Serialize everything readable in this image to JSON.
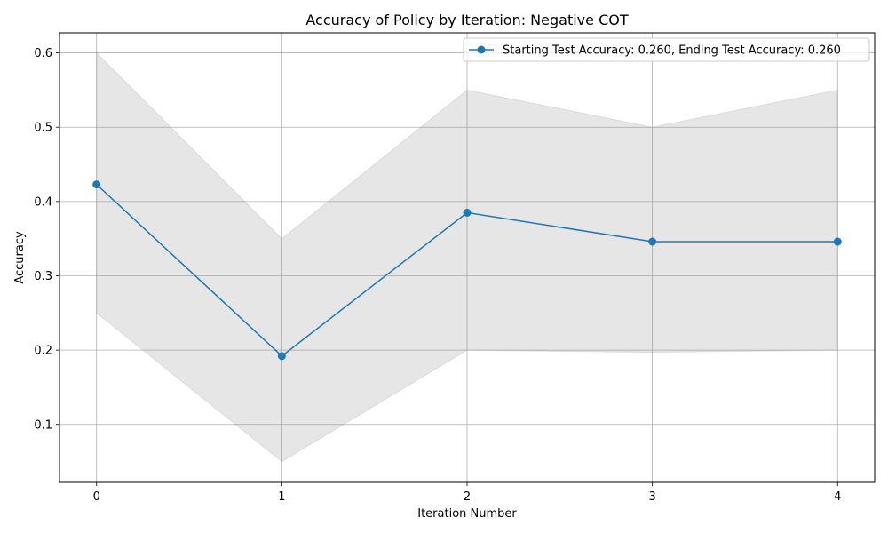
{
  "chart_data": {
    "type": "line",
    "title": "Accuracy of Policy by Iteration: Negative COT",
    "xlabel": "Iteration Number",
    "ylabel": "Accuracy",
    "x": [
      0,
      1,
      2,
      3,
      4
    ],
    "x_ticks": [
      "0",
      "1",
      "2",
      "3",
      "4"
    ],
    "y_ticks": [
      "0.1",
      "0.2",
      "0.3",
      "0.4",
      "0.5",
      "0.6"
    ],
    "y_tick_values": [
      0.1,
      0.2,
      0.3,
      0.4,
      0.5,
      0.6
    ],
    "xlim": [
      -0.2,
      4.2
    ],
    "ylim": [
      0.022,
      0.627
    ],
    "grid": true,
    "legend_position": "top-right",
    "series": [
      {
        "name": "Starting Test Accuracy: 0.260, Ending Test Accuracy: 0.260",
        "values": [
          0.423,
          0.192,
          0.385,
          0.346,
          0.346
        ],
        "color": "#1f77b4",
        "marker": "circle"
      }
    ],
    "band": {
      "lower": [
        0.25,
        0.05,
        0.2,
        0.197,
        0.2
      ],
      "upper": [
        0.6,
        0.35,
        0.55,
        0.5,
        0.55
      ],
      "color": "#808080"
    }
  }
}
